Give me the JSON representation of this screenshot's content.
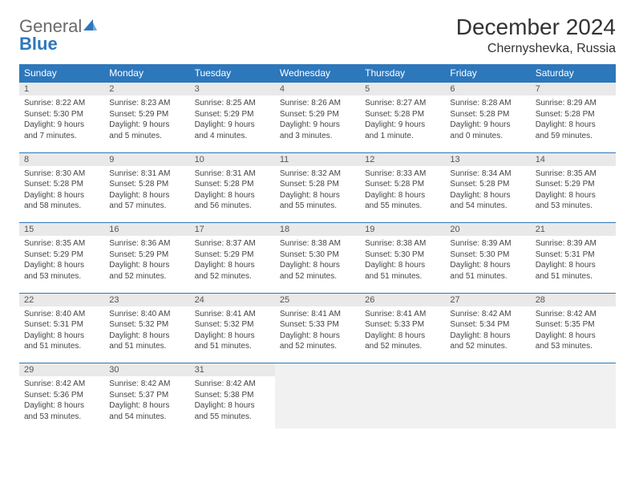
{
  "logo": {
    "general": "General",
    "blue": "Blue"
  },
  "title": "December 2024",
  "location": "Chernyshevka, Russia",
  "colors": {
    "header_bg": "#2d77bb",
    "header_text": "#ffffff",
    "daynum_bg": "#e9e9e9",
    "row_border": "#2d77bb",
    "body_bg": "#ffffff",
    "empty_bg": "#f1f1f1",
    "text": "#333333"
  },
  "fonts": {
    "title_pt": 28,
    "location_pt": 16,
    "dow_pt": 12,
    "daynum_pt": 11,
    "body_pt": 10
  },
  "days_of_week": [
    "Sunday",
    "Monday",
    "Tuesday",
    "Wednesday",
    "Thursday",
    "Friday",
    "Saturday"
  ],
  "weeks": [
    [
      {
        "n": "1",
        "sr": "Sunrise: 8:22 AM",
        "ss": "Sunset: 5:30 PM",
        "d1": "Daylight: 9 hours",
        "d2": "and 7 minutes."
      },
      {
        "n": "2",
        "sr": "Sunrise: 8:23 AM",
        "ss": "Sunset: 5:29 PM",
        "d1": "Daylight: 9 hours",
        "d2": "and 5 minutes."
      },
      {
        "n": "3",
        "sr": "Sunrise: 8:25 AM",
        "ss": "Sunset: 5:29 PM",
        "d1": "Daylight: 9 hours",
        "d2": "and 4 minutes."
      },
      {
        "n": "4",
        "sr": "Sunrise: 8:26 AM",
        "ss": "Sunset: 5:29 PM",
        "d1": "Daylight: 9 hours",
        "d2": "and 3 minutes."
      },
      {
        "n": "5",
        "sr": "Sunrise: 8:27 AM",
        "ss": "Sunset: 5:28 PM",
        "d1": "Daylight: 9 hours",
        "d2": "and 1 minute."
      },
      {
        "n": "6",
        "sr": "Sunrise: 8:28 AM",
        "ss": "Sunset: 5:28 PM",
        "d1": "Daylight: 9 hours",
        "d2": "and 0 minutes."
      },
      {
        "n": "7",
        "sr": "Sunrise: 8:29 AM",
        "ss": "Sunset: 5:28 PM",
        "d1": "Daylight: 8 hours",
        "d2": "and 59 minutes."
      }
    ],
    [
      {
        "n": "8",
        "sr": "Sunrise: 8:30 AM",
        "ss": "Sunset: 5:28 PM",
        "d1": "Daylight: 8 hours",
        "d2": "and 58 minutes."
      },
      {
        "n": "9",
        "sr": "Sunrise: 8:31 AM",
        "ss": "Sunset: 5:28 PM",
        "d1": "Daylight: 8 hours",
        "d2": "and 57 minutes."
      },
      {
        "n": "10",
        "sr": "Sunrise: 8:31 AM",
        "ss": "Sunset: 5:28 PM",
        "d1": "Daylight: 8 hours",
        "d2": "and 56 minutes."
      },
      {
        "n": "11",
        "sr": "Sunrise: 8:32 AM",
        "ss": "Sunset: 5:28 PM",
        "d1": "Daylight: 8 hours",
        "d2": "and 55 minutes."
      },
      {
        "n": "12",
        "sr": "Sunrise: 8:33 AM",
        "ss": "Sunset: 5:28 PM",
        "d1": "Daylight: 8 hours",
        "d2": "and 55 minutes."
      },
      {
        "n": "13",
        "sr": "Sunrise: 8:34 AM",
        "ss": "Sunset: 5:28 PM",
        "d1": "Daylight: 8 hours",
        "d2": "and 54 minutes."
      },
      {
        "n": "14",
        "sr": "Sunrise: 8:35 AM",
        "ss": "Sunset: 5:29 PM",
        "d1": "Daylight: 8 hours",
        "d2": "and 53 minutes."
      }
    ],
    [
      {
        "n": "15",
        "sr": "Sunrise: 8:35 AM",
        "ss": "Sunset: 5:29 PM",
        "d1": "Daylight: 8 hours",
        "d2": "and 53 minutes."
      },
      {
        "n": "16",
        "sr": "Sunrise: 8:36 AM",
        "ss": "Sunset: 5:29 PM",
        "d1": "Daylight: 8 hours",
        "d2": "and 52 minutes."
      },
      {
        "n": "17",
        "sr": "Sunrise: 8:37 AM",
        "ss": "Sunset: 5:29 PM",
        "d1": "Daylight: 8 hours",
        "d2": "and 52 minutes."
      },
      {
        "n": "18",
        "sr": "Sunrise: 8:38 AM",
        "ss": "Sunset: 5:30 PM",
        "d1": "Daylight: 8 hours",
        "d2": "and 52 minutes."
      },
      {
        "n": "19",
        "sr": "Sunrise: 8:38 AM",
        "ss": "Sunset: 5:30 PM",
        "d1": "Daylight: 8 hours",
        "d2": "and 51 minutes."
      },
      {
        "n": "20",
        "sr": "Sunrise: 8:39 AM",
        "ss": "Sunset: 5:30 PM",
        "d1": "Daylight: 8 hours",
        "d2": "and 51 minutes."
      },
      {
        "n": "21",
        "sr": "Sunrise: 8:39 AM",
        "ss": "Sunset: 5:31 PM",
        "d1": "Daylight: 8 hours",
        "d2": "and 51 minutes."
      }
    ],
    [
      {
        "n": "22",
        "sr": "Sunrise: 8:40 AM",
        "ss": "Sunset: 5:31 PM",
        "d1": "Daylight: 8 hours",
        "d2": "and 51 minutes."
      },
      {
        "n": "23",
        "sr": "Sunrise: 8:40 AM",
        "ss": "Sunset: 5:32 PM",
        "d1": "Daylight: 8 hours",
        "d2": "and 51 minutes."
      },
      {
        "n": "24",
        "sr": "Sunrise: 8:41 AM",
        "ss": "Sunset: 5:32 PM",
        "d1": "Daylight: 8 hours",
        "d2": "and 51 minutes."
      },
      {
        "n": "25",
        "sr": "Sunrise: 8:41 AM",
        "ss": "Sunset: 5:33 PM",
        "d1": "Daylight: 8 hours",
        "d2": "and 52 minutes."
      },
      {
        "n": "26",
        "sr": "Sunrise: 8:41 AM",
        "ss": "Sunset: 5:33 PM",
        "d1": "Daylight: 8 hours",
        "d2": "and 52 minutes."
      },
      {
        "n": "27",
        "sr": "Sunrise: 8:42 AM",
        "ss": "Sunset: 5:34 PM",
        "d1": "Daylight: 8 hours",
        "d2": "and 52 minutes."
      },
      {
        "n": "28",
        "sr": "Sunrise: 8:42 AM",
        "ss": "Sunset: 5:35 PM",
        "d1": "Daylight: 8 hours",
        "d2": "and 53 minutes."
      }
    ],
    [
      {
        "n": "29",
        "sr": "Sunrise: 8:42 AM",
        "ss": "Sunset: 5:36 PM",
        "d1": "Daylight: 8 hours",
        "d2": "and 53 minutes."
      },
      {
        "n": "30",
        "sr": "Sunrise: 8:42 AM",
        "ss": "Sunset: 5:37 PM",
        "d1": "Daylight: 8 hours",
        "d2": "and 54 minutes."
      },
      {
        "n": "31",
        "sr": "Sunrise: 8:42 AM",
        "ss": "Sunset: 5:38 PM",
        "d1": "Daylight: 8 hours",
        "d2": "and 55 minutes."
      },
      null,
      null,
      null,
      null
    ]
  ]
}
